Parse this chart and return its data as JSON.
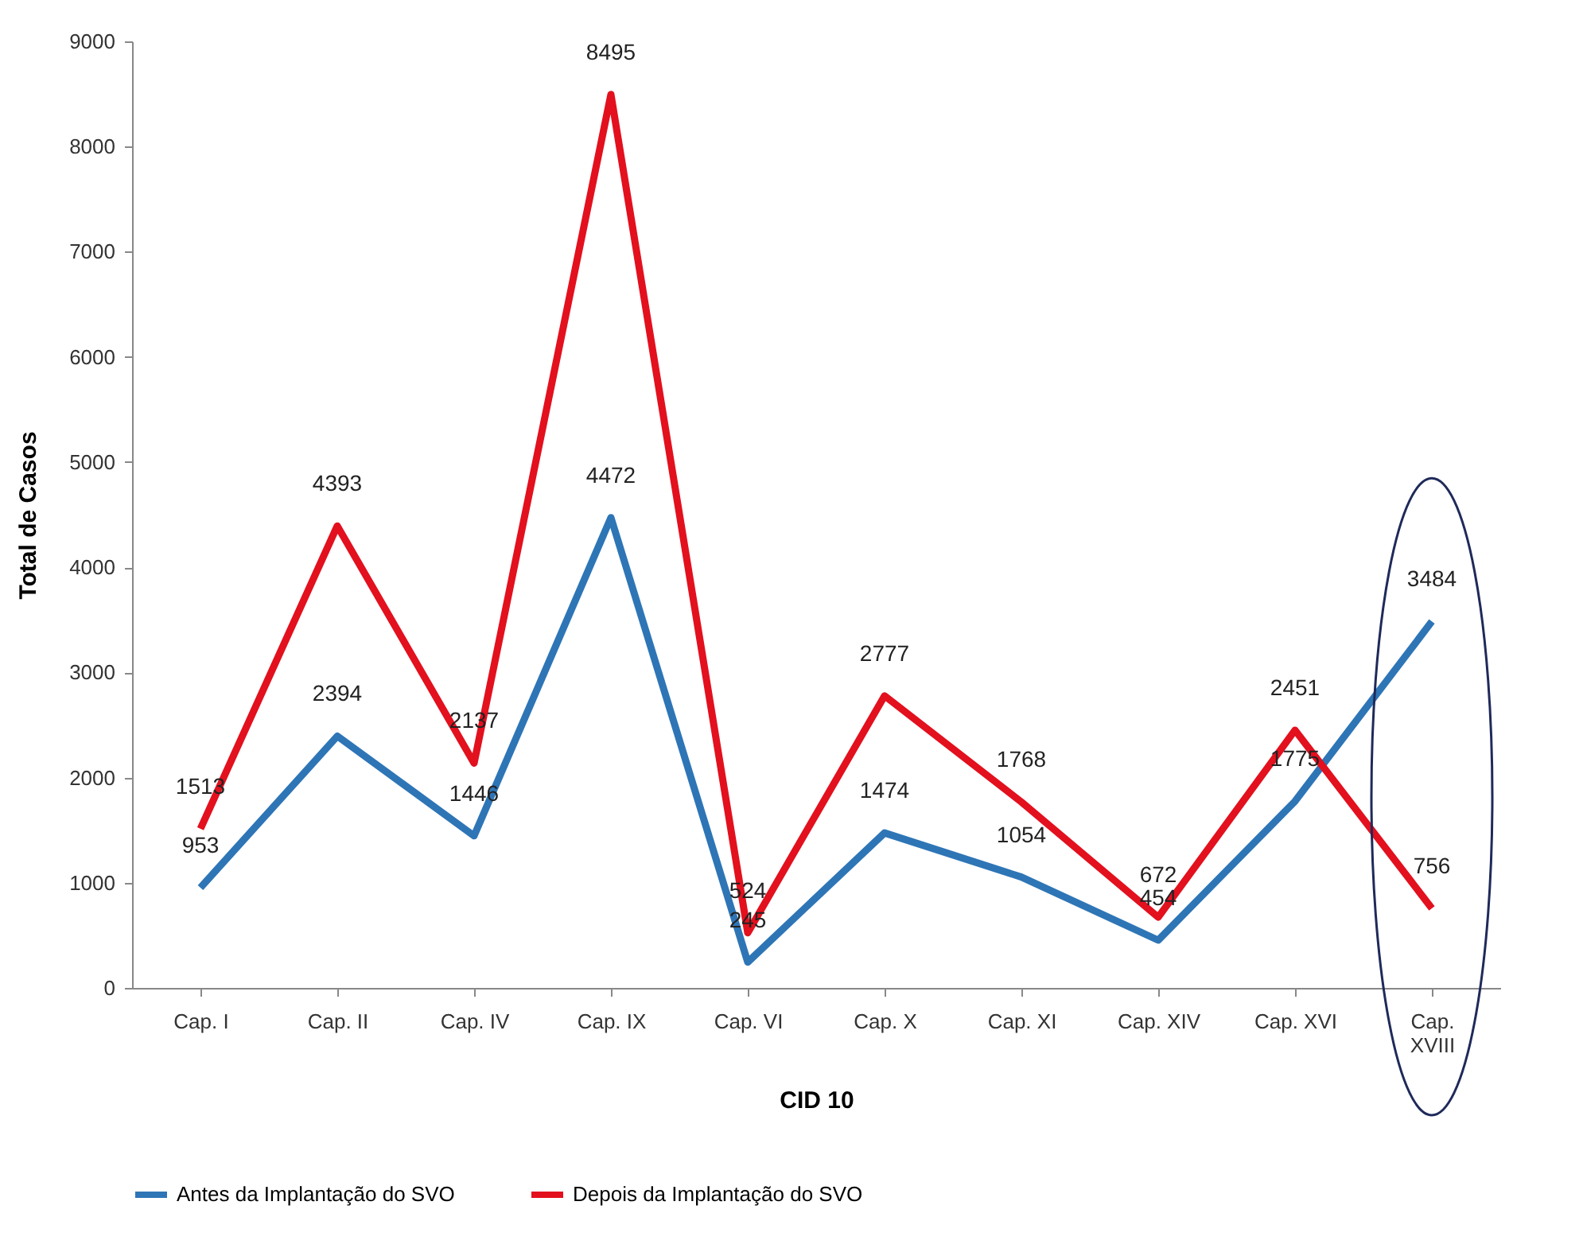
{
  "chart_data": {
    "type": "line",
    "xlabel": "CID 10",
    "ylabel": "Total de Casos",
    "categories": [
      "Cap. I",
      "Cap. II",
      "Cap. IV",
      "Cap. IX",
      "Cap. VI",
      "Cap. X",
      "Cap. XI",
      "Cap. XIV",
      "Cap. XVI",
      "Cap. XVIII"
    ],
    "series": [
      {
        "name": "Antes da Implantação do SVO",
        "color": "#2e75b6",
        "values": [
          953,
          2394,
          1446,
          4472,
          245,
          1474,
          1054,
          454,
          1775,
          3484
        ]
      },
      {
        "name": "Depois da Implantação do SVO",
        "color": "#e3101e",
        "values": [
          1513,
          4393,
          2137,
          8495,
          524,
          2777,
          1768,
          672,
          2451,
          756
        ]
      }
    ],
    "ylim": [
      0,
      9000
    ],
    "yticks": [
      0,
      1000,
      2000,
      3000,
      4000,
      5000,
      6000,
      7000,
      8000,
      9000
    ],
    "grid": false,
    "legend": "bottom",
    "data_labels": true,
    "marker": "none",
    "line_style": "solid"
  }
}
